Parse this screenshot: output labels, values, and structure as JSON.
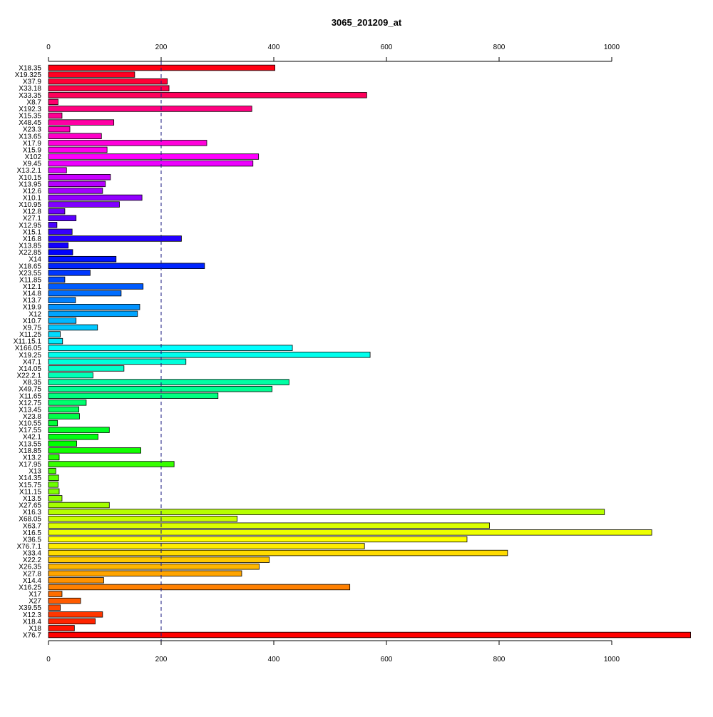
{
  "chart_data": {
    "type": "bar",
    "orientation": "horizontal",
    "title": "3065_201209_at",
    "xlabel": "",
    "ylabel": "",
    "xlim": [
      0,
      1140
    ],
    "x_ticks": [
      0,
      200,
      400,
      600,
      800,
      1000
    ],
    "axis_positions": [
      "top",
      "bottom"
    ],
    "grid": false,
    "reference_line": {
      "value": 200,
      "style": "dashed",
      "color": "#1a1a80"
    },
    "bar_outline_color": "#000000",
    "color_scheme": "rainbow",
    "categories": [
      "X18.35",
      "X19.325",
      "X37.9",
      "X33.18",
      "X33.35",
      "X8.7",
      "X192.3",
      "X15.35",
      "X48.45",
      "X23.3",
      "X13.65",
      "X17.9",
      "X15.9",
      "X102",
      "X9.45",
      "X13.2.1",
      "X10.15",
      "X13.95",
      "X12.6",
      "X10.1",
      "X10.95",
      "X12.8",
      "X27.1",
      "X12.95",
      "X15.1",
      "X16.8",
      "X13.85",
      "X22.85",
      "X14",
      "X18.65",
      "X23.55",
      "X11.85",
      "X12.1",
      "X14.8",
      "X13.7",
      "X19.9",
      "X12",
      "X10.7",
      "X9.75",
      "X11.25",
      "X11.15.1",
      "X166.05",
      "X19.25",
      "X47.1",
      "X14.05",
      "X22.2.1",
      "X8.35",
      "X49.75",
      "X11.65",
      "X12.75",
      "X13.45",
      "X23.8",
      "X10.55",
      "X17.55",
      "X42.1",
      "X13.55",
      "X18.85",
      "X13.2",
      "X17.95",
      "X13",
      "X14.35",
      "X15.75",
      "X11.15",
      "X13.5",
      "X27.65",
      "X16.3",
      "X68.05",
      "X63.7",
      "X16.5",
      "X36.5",
      "X76.7.1",
      "X33.4",
      "X22.2",
      "X26.35",
      "X27.8",
      "X14.4",
      "X16.25",
      "X17",
      "X27",
      "X39.55",
      "X12.3",
      "X18.4",
      "X18",
      "X76.7"
    ],
    "values": [
      402,
      153,
      211,
      214,
      565,
      17,
      361,
      24,
      116,
      38,
      94,
      281,
      104,
      373,
      363,
      32,
      110,
      101,
      96,
      166,
      126,
      29,
      49,
      15,
      42,
      236,
      35,
      43,
      120,
      277,
      74,
      29,
      168,
      129,
      48,
      162,
      158,
      49,
      87,
      21,
      25,
      433,
      571,
      244,
      134,
      79,
      427,
      397,
      301,
      67,
      54,
      55,
      16,
      108,
      88,
      50,
      164,
      19,
      223,
      13,
      18,
      17,
      19,
      24,
      108,
      987,
      335,
      783,
      1071,
      743,
      561,
      815,
      392,
      374,
      343,
      98,
      535,
      24,
      57,
      21,
      96,
      83,
      46,
      1140
    ]
  }
}
